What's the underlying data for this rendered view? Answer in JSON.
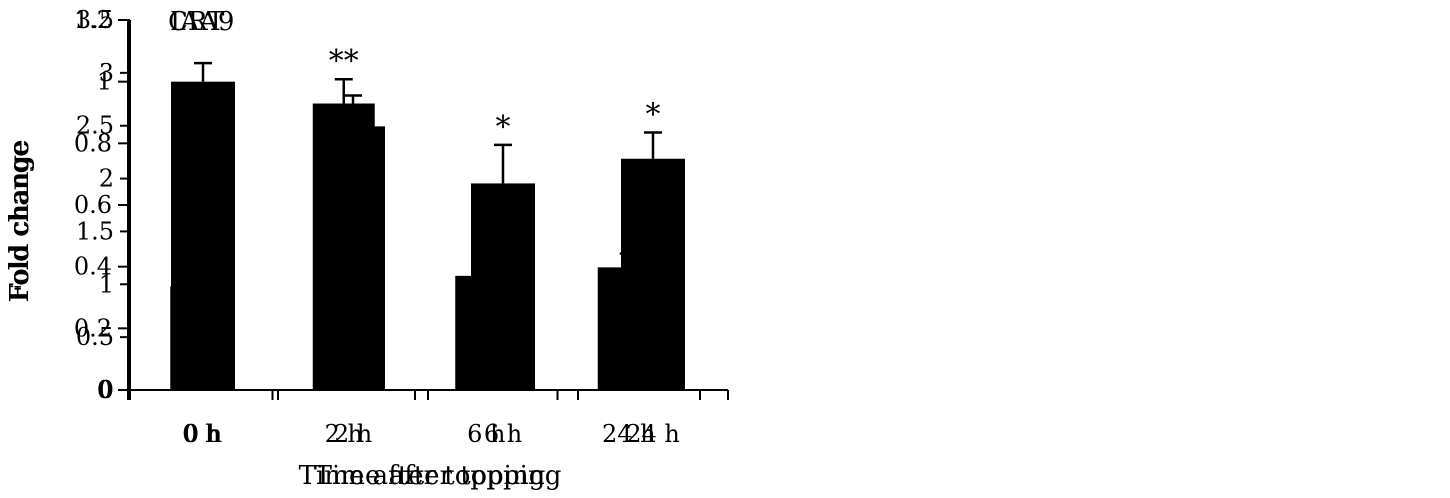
{
  "chart_data": [
    {
      "type": "bar",
      "title": "CRT",
      "xlabel": "Time after topping",
      "ylabel": "Fold change",
      "categories": [
        "0 h",
        "2 h",
        "6 h",
        "24 h"
      ],
      "values": [
        0.98,
        2.71,
        1.08,
        1.16
      ],
      "errors": [
        0.07,
        0.23,
        0.15,
        0.13
      ],
      "annotations": [
        "",
        "**",
        "",
        ""
      ],
      "ylim": [
        0,
        3.5
      ],
      "yticks": [
        0,
        0.5,
        1,
        1.5,
        2,
        2.5,
        3,
        3.5
      ],
      "ytick_labels": [
        "0",
        "0.5",
        "1",
        "1.5",
        "2",
        "2.5",
        "3",
        "3.5"
      ],
      "grid": false,
      "bar_color": "#000000"
    },
    {
      "type": "bar",
      "title": "IAA9",
      "xlabel": "Time after topping",
      "ylabel": "Fold change",
      "categories": [
        "0 h",
        "2 h",
        "6 h",
        "24 h"
      ],
      "values": [
        1.0,
        0.855,
        0.67,
        0.75
      ],
      "errors": [
        0.06,
        0.1,
        0.125,
        0.085
      ],
      "annotations": [
        "",
        "",
        "*",
        "*"
      ],
      "ylim": [
        0,
        1.2
      ],
      "yticks": [
        0,
        0.2,
        0.4,
        0.6,
        0.8,
        1,
        1.2
      ],
      "ytick_labels": [
        "0",
        "0.2",
        "0.4",
        "0.6",
        "0.8",
        "1",
        "1.2"
      ],
      "grid": false,
      "bar_color": "#000000"
    }
  ]
}
